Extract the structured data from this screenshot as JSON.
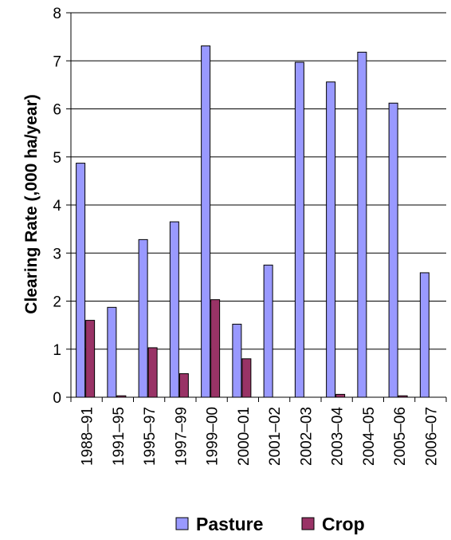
{
  "chart_data": {
    "type": "bar",
    "categories": [
      "1988–91",
      "1991–95",
      "1995–97",
      "1997–99",
      "1999–00",
      "2000–01",
      "2001–02",
      "2002–03",
      "2003–04",
      "2004–05",
      "2005–06",
      "2006–07"
    ],
    "series": [
      {
        "name": "Pasture",
        "color": "#9999ff",
        "values": [
          4.87,
          1.87,
          3.28,
          3.65,
          7.31,
          1.52,
          2.75,
          6.97,
          6.56,
          7.18,
          6.12,
          2.59
        ]
      },
      {
        "name": "Crop",
        "color": "#993366",
        "values": [
          1.6,
          0.03,
          1.03,
          0.49,
          2.03,
          0.8,
          0,
          0,
          0.06,
          0,
          0.03,
          0
        ]
      }
    ],
    "ylabel": "Clearing Rate (,000 ha/year)",
    "xlabel": "",
    "ylim": [
      0,
      8
    ],
    "yticks": [
      0,
      1,
      2,
      3,
      4,
      5,
      6,
      7,
      8
    ],
    "grid": true,
    "legend": "bottom"
  }
}
